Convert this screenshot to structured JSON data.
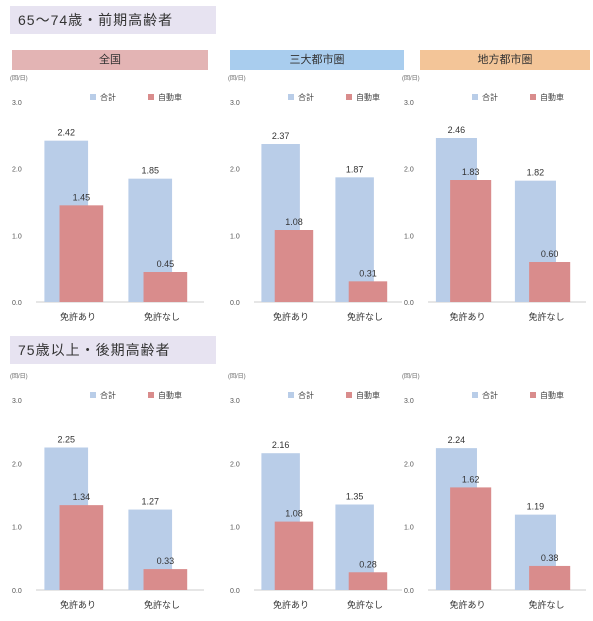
{
  "sections": [
    {
      "title": "65～74歳・前期高齢者"
    },
    {
      "title": "75歳以上・後期高齢者"
    }
  ],
  "panel_headers": [
    "全国",
    "三大都市圏",
    "地方都市圏"
  ],
  "colors": {
    "total": "#b9cde8",
    "car": "#d98c8c",
    "header_national": "#e3b4b4",
    "header_metro": "#a9cdee",
    "header_local": "#f3c598",
    "section_bg": "#e7e3f1"
  },
  "chart_data": [
    {
      "type": "bar",
      "title": "全国",
      "group": "65～74歳・前期高齢者",
      "unit": "(回/日)",
      "categories": [
        "免許あり",
        "免許なし"
      ],
      "ylim": [
        0,
        3
      ],
      "yticks": [
        "0.0",
        "1.0",
        "2.0",
        "3.0"
      ],
      "series": [
        {
          "name": "合計",
          "values": [
            2.42,
            1.85
          ]
        },
        {
          "name": "自動車",
          "values": [
            1.45,
            0.45
          ]
        }
      ],
      "legend": "top-right"
    },
    {
      "type": "bar",
      "title": "三大都市圏",
      "group": "65～74歳・前期高齢者",
      "unit": "(回/日)",
      "categories": [
        "免許あり",
        "免許なし"
      ],
      "ylim": [
        0,
        3
      ],
      "yticks": [
        "0.0",
        "1.0",
        "2.0",
        "3.0"
      ],
      "series": [
        {
          "name": "合計",
          "values": [
            2.37,
            1.87
          ]
        },
        {
          "name": "自動車",
          "values": [
            1.08,
            0.31
          ]
        }
      ],
      "legend": "top-right"
    },
    {
      "type": "bar",
      "title": "地方都市圏",
      "group": "65～74歳・前期高齢者",
      "unit": "(回/日)",
      "categories": [
        "免許あり",
        "免許なし"
      ],
      "ylim": [
        0,
        3
      ],
      "yticks": [
        "0.0",
        "1.0",
        "2.0",
        "3.0"
      ],
      "series": [
        {
          "name": "合計",
          "values": [
            2.46,
            1.82
          ]
        },
        {
          "name": "自動車",
          "values": [
            1.83,
            0.6
          ]
        }
      ],
      "legend": "top-right"
    },
    {
      "type": "bar",
      "title": "",
      "group": "75歳以上・後期高齢者",
      "unit": "(回/日)",
      "categories": [
        "免許あり",
        "免許なし"
      ],
      "ylim": [
        0,
        3
      ],
      "yticks": [
        "0.0",
        "1.0",
        "2.0",
        "3.0"
      ],
      "series": [
        {
          "name": "合計",
          "values": [
            2.25,
            1.27
          ]
        },
        {
          "name": "自動車",
          "values": [
            1.34,
            0.33
          ]
        }
      ],
      "legend": "top-right"
    },
    {
      "type": "bar",
      "title": "",
      "group": "75歳以上・後期高齢者",
      "unit": "(回/日)",
      "categories": [
        "免許あり",
        "免許なし"
      ],
      "ylim": [
        0,
        3
      ],
      "yticks": [
        "0.0",
        "1.0",
        "2.0",
        "3.0"
      ],
      "series": [
        {
          "name": "合計",
          "values": [
            2.16,
            1.35
          ]
        },
        {
          "name": "自動車",
          "values": [
            1.08,
            0.28
          ]
        }
      ],
      "legend": "top-right"
    },
    {
      "type": "bar",
      "title": "",
      "group": "75歳以上・後期高齢者",
      "unit": "(回/日)",
      "categories": [
        "免許あり",
        "免許なし"
      ],
      "ylim": [
        0,
        3
      ],
      "yticks": [
        "0.0",
        "1.0",
        "2.0",
        "3.0"
      ],
      "series": [
        {
          "name": "合計",
          "values": [
            2.24,
            1.19
          ]
        },
        {
          "name": "自動車",
          "values": [
            1.62,
            0.38
          ]
        }
      ],
      "legend": "top-right"
    }
  ]
}
